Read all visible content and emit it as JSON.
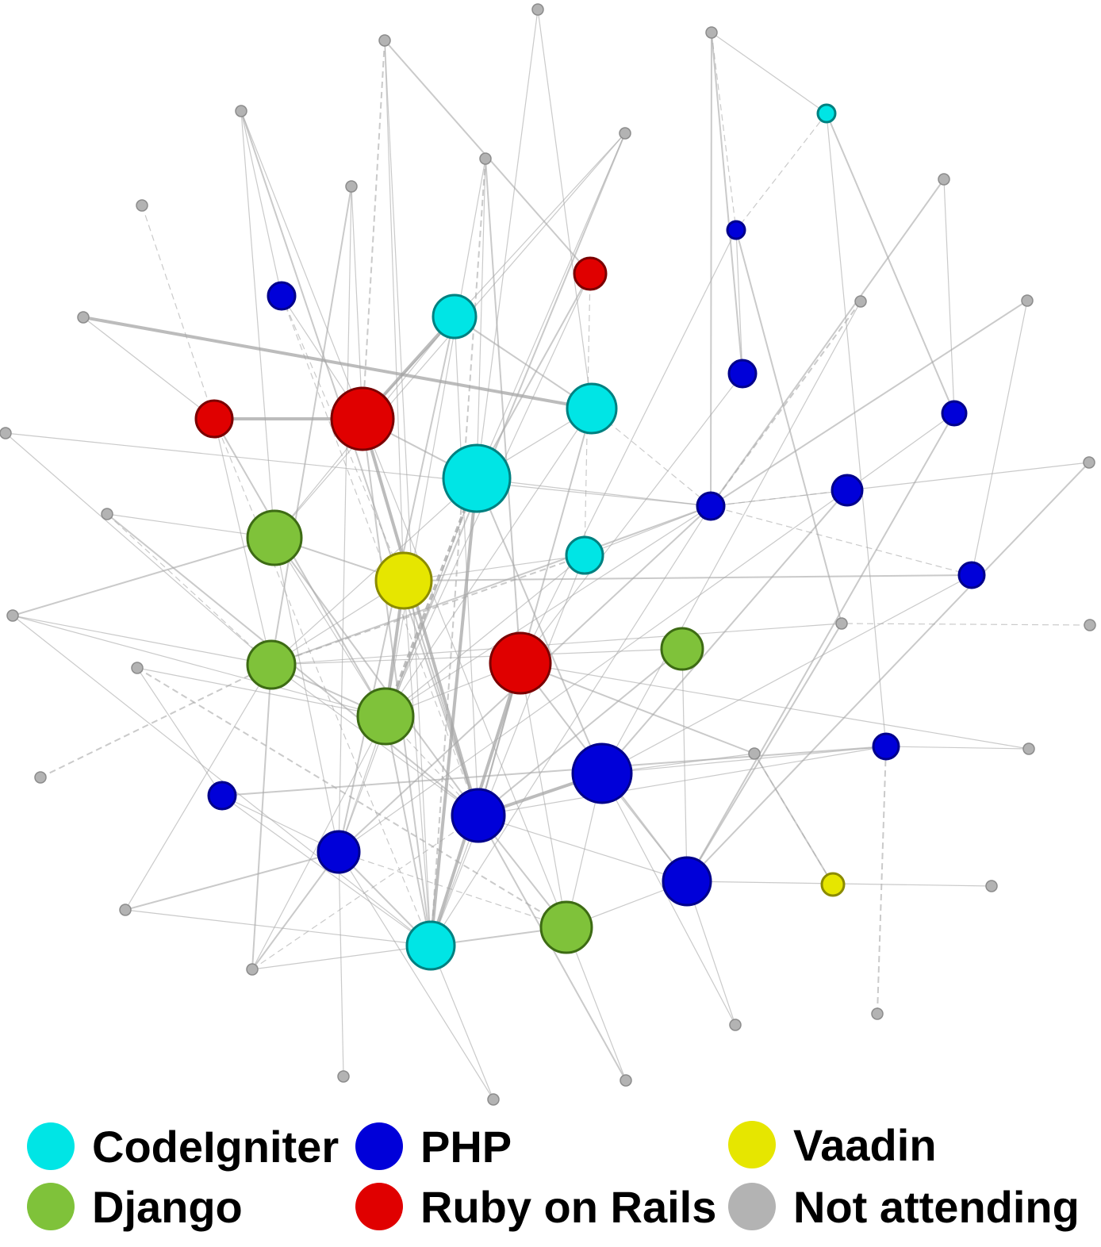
{
  "colors": {
    "codeigniter": "#00e5e5",
    "php": "#0000d9",
    "vaadin": "#e6e600",
    "django": "#7fc23a",
    "rails": "#e00000",
    "not_attending": "#b3b3b3",
    "edge": "#a6a6a6"
  },
  "legend": [
    {
      "key": "codeigniter",
      "label": "CodeIgniter",
      "icon": "cyan-circle"
    },
    {
      "key": "php",
      "label": "PHP",
      "icon": "blue-circle"
    },
    {
      "key": "vaadin",
      "label": "Vaadin",
      "icon": "yellow-circle"
    },
    {
      "key": "django",
      "label": "Django",
      "icon": "green-circle"
    },
    {
      "key": "rails",
      "label": "Ruby on Rails",
      "icon": "red-circle"
    },
    {
      "key": "not_attending",
      "label": "Not attending",
      "icon": "gray-circle"
    }
  ]
}
